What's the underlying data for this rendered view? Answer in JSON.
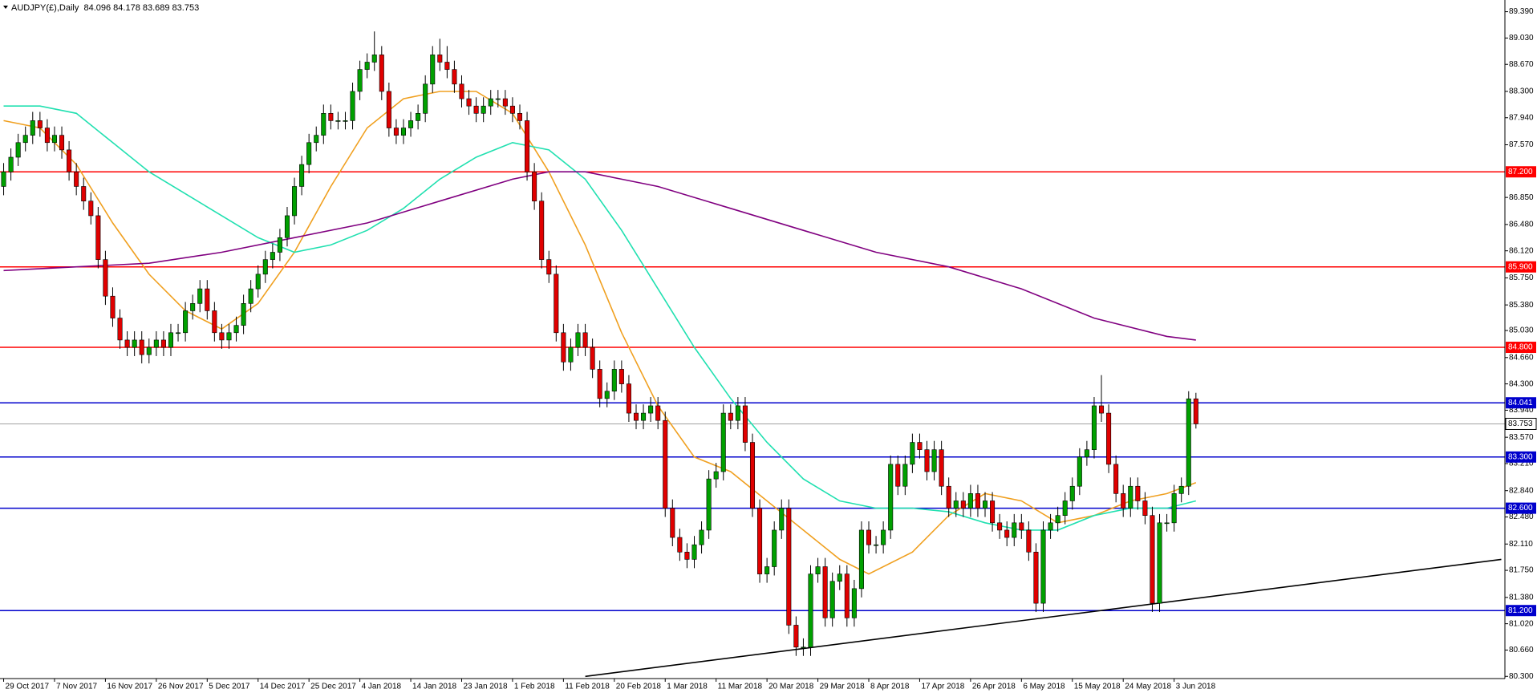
{
  "chart_data": {
    "type": "candlestick",
    "title": "AUDJPY(£),Daily  84.096 84.178 83.689 83.753",
    "up_color": "#00a000",
    "down_color": "#e00000",
    "wick_color": "#000000",
    "xlim": [
      -0.5,
      206.5
    ],
    "ylim": [
      80.27,
      89.55
    ],
    "ohlc": [
      [
        87.0,
        87.32,
        86.88,
        87.2
      ],
      [
        87.2,
        87.52,
        87.08,
        87.4
      ],
      [
        87.4,
        87.72,
        87.28,
        87.6
      ],
      [
        87.6,
        87.82,
        87.48,
        87.7
      ],
      [
        87.7,
        88.02,
        87.58,
        87.9
      ],
      [
        87.9,
        88.02,
        87.68,
        87.8
      ],
      [
        87.8,
        87.92,
        87.48,
        87.6
      ],
      [
        87.6,
        87.82,
        87.48,
        87.7
      ],
      [
        87.7,
        87.82,
        87.38,
        87.5
      ],
      [
        87.5,
        87.62,
        87.08,
        87.2
      ],
      [
        87.2,
        87.32,
        86.88,
        87.0
      ],
      [
        87.0,
        87.12,
        86.68,
        86.8
      ],
      [
        86.8,
        86.92,
        86.48,
        86.6
      ],
      [
        86.6,
        86.72,
        85.88,
        86.0
      ],
      [
        86.0,
        86.12,
        85.38,
        85.5
      ],
      [
        85.5,
        85.62,
        85.08,
        85.2
      ],
      [
        85.2,
        85.32,
        84.78,
        84.9
      ],
      [
        84.9,
        85.02,
        84.68,
        84.8
      ],
      [
        84.8,
        85.02,
        84.68,
        84.9
      ],
      [
        84.9,
        85.02,
        84.58,
        84.7
      ],
      [
        84.7,
        84.92,
        84.58,
        84.8
      ],
      [
        84.8,
        85.02,
        84.68,
        84.9
      ],
      [
        84.9,
        85.02,
        84.68,
        84.8
      ],
      [
        84.8,
        85.12,
        84.68,
        85.0
      ],
      [
        85.0,
        85.12,
        84.88,
        85.0
      ],
      [
        85.0,
        85.42,
        84.88,
        85.3
      ],
      [
        85.3,
        85.52,
        85.18,
        85.4
      ],
      [
        85.4,
        85.72,
        85.28,
        85.6
      ],
      [
        85.6,
        85.72,
        85.18,
        85.3
      ],
      [
        85.3,
        85.42,
        84.88,
        85.0
      ],
      [
        85.0,
        85.12,
        84.78,
        84.9
      ],
      [
        84.9,
        85.12,
        84.78,
        85.0
      ],
      [
        85.0,
        85.22,
        84.88,
        85.1
      ],
      [
        85.1,
        85.52,
        84.98,
        85.4
      ],
      [
        85.4,
        85.72,
        85.28,
        85.6
      ],
      [
        85.6,
        85.92,
        85.48,
        85.8
      ],
      [
        85.8,
        86.12,
        85.68,
        86.0
      ],
      [
        86.0,
        86.22,
        85.88,
        86.1
      ],
      [
        86.1,
        86.42,
        85.98,
        86.3
      ],
      [
        86.3,
        86.72,
        86.18,
        86.6
      ],
      [
        86.6,
        87.12,
        86.48,
        87.0
      ],
      [
        87.0,
        87.42,
        86.88,
        87.3
      ],
      [
        87.3,
        87.72,
        87.18,
        87.6
      ],
      [
        87.6,
        87.82,
        87.48,
        87.7
      ],
      [
        87.7,
        88.12,
        87.58,
        88.0
      ],
      [
        88.0,
        88.12,
        87.78,
        87.9
      ],
      [
        87.9,
        88.02,
        87.78,
        87.9
      ],
      [
        87.9,
        88.02,
        87.78,
        87.9
      ],
      [
        87.9,
        88.42,
        87.78,
        88.3
      ],
      [
        88.3,
        88.72,
        88.18,
        88.6
      ],
      [
        88.6,
        88.82,
        88.48,
        88.7
      ],
      [
        88.7,
        89.12,
        88.58,
        88.8
      ],
      [
        88.8,
        88.92,
        88.18,
        88.3
      ],
      [
        88.3,
        88.42,
        87.68,
        87.8
      ],
      [
        87.8,
        87.92,
        87.58,
        87.7
      ],
      [
        87.7,
        87.92,
        87.58,
        87.8
      ],
      [
        87.8,
        88.02,
        87.68,
        87.9
      ],
      [
        87.9,
        88.12,
        87.78,
        88.0
      ],
      [
        88.0,
        88.52,
        87.88,
        88.4
      ],
      [
        88.4,
        88.92,
        88.28,
        88.8
      ],
      [
        88.8,
        89.02,
        88.58,
        88.7
      ],
      [
        88.7,
        88.92,
        88.48,
        88.6
      ],
      [
        88.6,
        88.72,
        88.28,
        88.4
      ],
      [
        88.4,
        88.52,
        88.08,
        88.2
      ],
      [
        88.2,
        88.32,
        87.98,
        88.1
      ],
      [
        88.1,
        88.22,
        87.88,
        88.0
      ],
      [
        88.0,
        88.22,
        87.88,
        88.1
      ],
      [
        88.1,
        88.32,
        87.98,
        88.2
      ],
      [
        88.2,
        88.32,
        88.08,
        88.2
      ],
      [
        88.2,
        88.32,
        87.98,
        88.1
      ],
      [
        88.1,
        88.22,
        87.88,
        88.0
      ],
      [
        88.0,
        88.12,
        87.78,
        87.9
      ],
      [
        87.9,
        88.02,
        87.08,
        87.2
      ],
      [
        87.2,
        87.32,
        86.68,
        86.8
      ],
      [
        86.8,
        86.92,
        85.88,
        86.0
      ],
      [
        86.0,
        86.12,
        85.68,
        85.8
      ],
      [
        85.8,
        85.92,
        84.88,
        85.0
      ],
      [
        85.0,
        85.12,
        84.48,
        84.6
      ],
      [
        84.6,
        84.92,
        84.48,
        84.8
      ],
      [
        84.8,
        85.12,
        84.68,
        85.0
      ],
      [
        85.0,
        85.12,
        84.68,
        84.8
      ],
      [
        84.8,
        84.92,
        84.38,
        84.5
      ],
      [
        84.5,
        84.62,
        83.98,
        84.1
      ],
      [
        84.1,
        84.32,
        83.98,
        84.2
      ],
      [
        84.2,
        84.62,
        84.08,
        84.5
      ],
      [
        84.5,
        84.62,
        84.18,
        84.3
      ],
      [
        84.3,
        84.42,
        83.78,
        83.9
      ],
      [
        83.9,
        84.02,
        83.68,
        83.8
      ],
      [
        83.8,
        84.02,
        83.68,
        83.9
      ],
      [
        83.9,
        84.12,
        83.78,
        84.0
      ],
      [
        84.0,
        84.12,
        83.68,
        83.8
      ],
      [
        83.8,
        83.92,
        82.48,
        82.6
      ],
      [
        82.6,
        82.72,
        82.08,
        82.2
      ],
      [
        82.2,
        82.32,
        81.88,
        82.0
      ],
      [
        82.0,
        82.12,
        81.78,
        81.9
      ],
      [
        81.9,
        82.22,
        81.78,
        82.1
      ],
      [
        82.1,
        82.42,
        81.98,
        82.3
      ],
      [
        82.3,
        83.12,
        82.18,
        83.0
      ],
      [
        83.0,
        83.22,
        82.88,
        83.1
      ],
      [
        83.1,
        84.02,
        82.98,
        83.9
      ],
      [
        83.9,
        84.02,
        83.68,
        83.8
      ],
      [
        83.8,
        84.12,
        83.68,
        84.0
      ],
      [
        84.0,
        84.12,
        83.38,
        83.5
      ],
      [
        83.5,
        83.62,
        82.48,
        82.6
      ],
      [
        82.6,
        82.72,
        81.58,
        81.7
      ],
      [
        81.7,
        81.92,
        81.58,
        81.8
      ],
      [
        81.8,
        82.42,
        81.68,
        82.3
      ],
      [
        82.3,
        82.72,
        82.18,
        82.6
      ],
      [
        82.6,
        82.72,
        80.88,
        81.0
      ],
      [
        81.0,
        81.12,
        80.58,
        80.7
      ],
      [
        80.7,
        80.82,
        80.58,
        80.7
      ],
      [
        80.7,
        81.82,
        80.58,
        81.7
      ],
      [
        81.7,
        81.92,
        81.58,
        81.8
      ],
      [
        81.8,
        81.92,
        80.98,
        81.1
      ],
      [
        81.1,
        81.72,
        80.98,
        81.6
      ],
      [
        81.6,
        81.82,
        81.48,
        81.7
      ],
      [
        81.7,
        81.82,
        80.98,
        81.1
      ],
      [
        81.1,
        81.62,
        80.98,
        81.5
      ],
      [
        81.5,
        82.42,
        81.38,
        82.3
      ],
      [
        82.3,
        82.42,
        81.98,
        82.1
      ],
      [
        82.1,
        82.22,
        81.98,
        82.1
      ],
      [
        82.1,
        82.42,
        81.98,
        82.3
      ],
      [
        82.3,
        83.32,
        82.18,
        83.2
      ],
      [
        83.2,
        83.32,
        82.78,
        82.9
      ],
      [
        82.9,
        83.32,
        82.78,
        83.2
      ],
      [
        83.2,
        83.62,
        83.08,
        83.5
      ],
      [
        83.5,
        83.62,
        83.28,
        83.4
      ],
      [
        83.4,
        83.52,
        82.98,
        83.1
      ],
      [
        83.1,
        83.52,
        82.98,
        83.4
      ],
      [
        83.4,
        83.52,
        82.78,
        82.9
      ],
      [
        82.9,
        83.02,
        82.48,
        82.6
      ],
      [
        82.6,
        82.82,
        82.48,
        82.7
      ],
      [
        82.7,
        82.82,
        82.48,
        82.6
      ],
      [
        82.6,
        82.92,
        82.48,
        82.8
      ],
      [
        82.8,
        82.92,
        82.48,
        82.6
      ],
      [
        82.6,
        82.82,
        82.48,
        82.7
      ],
      [
        82.7,
        82.82,
        82.28,
        82.4
      ],
      [
        82.4,
        82.52,
        82.18,
        82.3
      ],
      [
        82.3,
        82.42,
        82.08,
        82.2
      ],
      [
        82.2,
        82.52,
        82.08,
        82.4
      ],
      [
        82.4,
        82.52,
        82.18,
        82.3
      ],
      [
        82.3,
        82.42,
        81.88,
        82.0
      ],
      [
        82.0,
        82.12,
        81.18,
        81.3
      ],
      [
        81.3,
        82.42,
        81.18,
        82.3
      ],
      [
        82.3,
        82.52,
        82.18,
        82.4
      ],
      [
        82.4,
        82.62,
        82.28,
        82.5
      ],
      [
        82.5,
        82.82,
        82.38,
        82.7
      ],
      [
        82.7,
        83.02,
        82.58,
        82.9
      ],
      [
        82.9,
        83.42,
        82.78,
        83.3
      ],
      [
        83.3,
        83.52,
        83.18,
        83.4
      ],
      [
        83.4,
        84.12,
        83.28,
        84.0
      ],
      [
        84.0,
        84.42,
        83.78,
        83.9
      ],
      [
        83.9,
        84.02,
        83.08,
        83.2
      ],
      [
        83.2,
        83.32,
        82.68,
        82.8
      ],
      [
        82.8,
        82.92,
        82.48,
        82.6
      ],
      [
        82.6,
        83.02,
        82.48,
        82.9
      ],
      [
        82.9,
        83.02,
        82.58,
        82.7
      ],
      [
        82.7,
        82.82,
        82.38,
        82.5
      ],
      [
        82.5,
        82.62,
        81.18,
        81.3
      ],
      [
        81.3,
        82.52,
        81.18,
        82.4
      ],
      [
        82.4,
        82.52,
        82.28,
        82.4
      ],
      [
        82.4,
        82.92,
        82.28,
        82.8
      ],
      [
        82.8,
        83.02,
        82.68,
        82.9
      ],
      [
        82.9,
        84.2,
        82.78,
        84.096
      ],
      [
        84.096,
        84.178,
        83.689,
        83.753
      ]
    ],
    "lines": [
      {
        "color": "#f0a020",
        "x": [
          0,
          5,
          10,
          15,
          20,
          25,
          30,
          35,
          40,
          45,
          50,
          55,
          60,
          65,
          70,
          75,
          80,
          85,
          90,
          95,
          100,
          105,
          110,
          115,
          119,
          125,
          130,
          135,
          140,
          145,
          150,
          155,
          160,
          164
        ],
        "values": [
          87.9,
          87.8,
          87.3,
          86.5,
          85.8,
          85.3,
          85.05,
          85.4,
          86.1,
          87.0,
          87.8,
          88.2,
          88.3,
          88.3,
          88.0,
          87.2,
          86.2,
          85.0,
          84.0,
          83.3,
          83.1,
          82.7,
          82.3,
          81.9,
          81.7,
          82.0,
          82.5,
          82.8,
          82.7,
          82.4,
          82.5,
          82.7,
          82.8,
          82.95
        ]
      },
      {
        "color": "#20e0b0",
        "x": [
          0,
          5,
          10,
          15,
          20,
          25,
          30,
          35,
          40,
          45,
          50,
          55,
          60,
          65,
          70,
          75,
          80,
          85,
          90,
          95,
          100,
          105,
          110,
          115,
          120,
          125,
          130,
          135,
          140,
          145,
          150,
          155,
          160,
          164
        ],
        "values": [
          88.1,
          88.1,
          88.0,
          87.6,
          87.2,
          86.9,
          86.6,
          86.3,
          86.1,
          86.2,
          86.4,
          86.7,
          87.1,
          87.4,
          87.6,
          87.5,
          87.1,
          86.4,
          85.6,
          84.8,
          84.1,
          83.5,
          83.0,
          82.7,
          82.6,
          82.6,
          82.55,
          82.4,
          82.3,
          82.3,
          82.5,
          82.6,
          82.6,
          82.7
        ]
      },
      {
        "color": "#800080",
        "x": [
          0,
          10,
          20,
          30,
          40,
          50,
          60,
          70,
          75,
          80,
          85,
          90,
          100,
          110,
          120,
          130,
          140,
          150,
          160,
          164
        ],
        "values": [
          85.85,
          85.9,
          85.95,
          86.1,
          86.3,
          86.5,
          86.8,
          87.1,
          87.2,
          87.2,
          87.1,
          87.0,
          86.7,
          86.4,
          86.1,
          85.9,
          85.6,
          85.2,
          84.95,
          84.9
        ]
      }
    ],
    "trendline": {
      "color": "#000000",
      "x": [
        80,
        206
      ],
      "values": [
        80.3,
        81.9
      ]
    },
    "levels": [
      {
        "value": 87.2,
        "label": "87.200",
        "color": "#ff0000"
      },
      {
        "value": 85.9,
        "label": "85.900",
        "color": "#ff0000"
      },
      {
        "value": 84.8,
        "label": "84.800",
        "color": "#ff0000"
      },
      {
        "value": 84.041,
        "label": "84.041",
        "color": "#0000cc"
      },
      {
        "value": 83.3,
        "label": "83.300",
        "color": "#0000cc"
      },
      {
        "value": 82.6,
        "label": "82.600",
        "color": "#0000cc"
      },
      {
        "value": 81.2,
        "label": "81.200",
        "color": "#0000cc"
      }
    ],
    "current_price": {
      "value": 83.753,
      "label": "83.753",
      "color": "#a0a0a0"
    },
    "yticks": [
      {
        "value": 89.39,
        "label": "89.390"
      },
      {
        "value": 89.03,
        "label": "89.030"
      },
      {
        "value": 88.67,
        "label": "88.670"
      },
      {
        "value": 88.3,
        "label": "88.300"
      },
      {
        "value": 87.94,
        "label": "87.940"
      },
      {
        "value": 87.57,
        "label": "87.570"
      },
      {
        "value": 86.85,
        "label": "86.850"
      },
      {
        "value": 86.48,
        "label": "86.480"
      },
      {
        "value": 86.12,
        "label": "86.120"
      },
      {
        "value": 85.75,
        "label": "85.750"
      },
      {
        "value": 85.38,
        "label": "85.380"
      },
      {
        "value": 85.03,
        "label": "85.030"
      },
      {
        "value": 84.66,
        "label": "84.660"
      },
      {
        "value": 84.3,
        "label": "84.300"
      },
      {
        "value": 83.94,
        "label": "83.940"
      },
      {
        "value": 83.57,
        "label": "83.570"
      },
      {
        "value": 83.21,
        "label": "83.210"
      },
      {
        "value": 82.84,
        "label": "82.840"
      },
      {
        "value": 82.48,
        "label": "82.480"
      },
      {
        "value": 82.11,
        "label": "82.110"
      },
      {
        "value": 81.75,
        "label": "81.750"
      },
      {
        "value": 81.38,
        "label": "81.380"
      },
      {
        "value": 81.02,
        "label": "81.020"
      },
      {
        "value": 80.66,
        "label": "80.660"
      },
      {
        "value": 80.3,
        "label": "80.300"
      }
    ],
    "xticks": [
      {
        "value": 0,
        "label": "29 Oct 2017"
      },
      {
        "value": 7,
        "label": "7 Nov 2017"
      },
      {
        "value": 14,
        "label": "16 Nov 2017"
      },
      {
        "value": 21,
        "label": "26 Nov 2017"
      },
      {
        "value": 28,
        "label": "5 Dec 2017"
      },
      {
        "value": 35,
        "label": "14 Dec 2017"
      },
      {
        "value": 42,
        "label": "25 Dec 2017"
      },
      {
        "value": 49,
        "label": "4 Jan 2018"
      },
      {
        "value": 56,
        "label": "14 Jan 2018"
      },
      {
        "value": 63,
        "label": "23 Jan 2018"
      },
      {
        "value": 70,
        "label": "1 Feb 2018"
      },
      {
        "value": 77,
        "label": "11 Feb 2018"
      },
      {
        "value": 84,
        "label": "20 Feb 2018"
      },
      {
        "value": 91,
        "label": "1 Mar 2018"
      },
      {
        "value": 98,
        "label": "11 Mar 2018"
      },
      {
        "value": 105,
        "label": "20 Mar 2018"
      },
      {
        "value": 112,
        "label": "29 Mar 2018"
      },
      {
        "value": 119,
        "label": "8 Apr 2018"
      },
      {
        "value": 126,
        "label": "17 Apr 2018"
      },
      {
        "value": 133,
        "label": "26 Apr 2018"
      },
      {
        "value": 140,
        "label": "6 May 2018"
      },
      {
        "value": 147,
        "label": "15 May 2018"
      },
      {
        "value": 154,
        "label": "24 May 2018"
      },
      {
        "value": 161,
        "label": "3 Jun 2018"
      }
    ]
  }
}
